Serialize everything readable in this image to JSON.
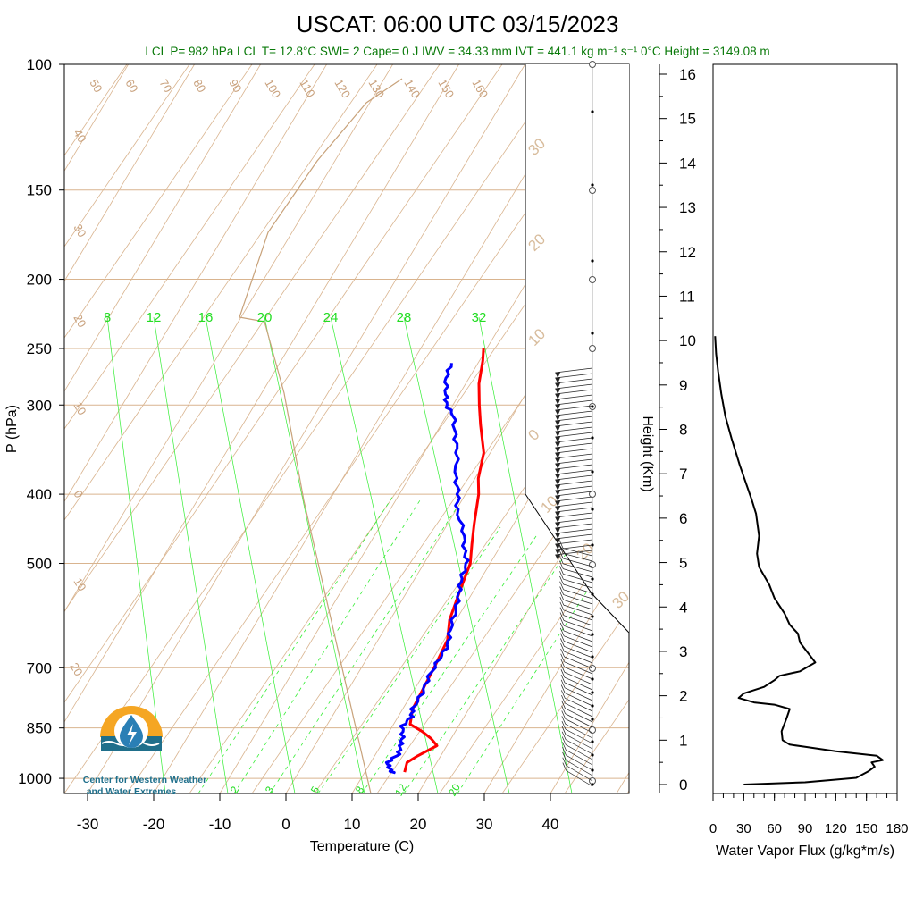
{
  "header": {
    "title": "USCAT: 06:00 UTC 03/15/2023",
    "stats": "LCL P= 982 hPa  LCL T= 12.8°C  SWI= 2  Cape= 0 J  IWV = 34.33 mm  IVT = 441.1 kg m⁻¹ s⁻¹  0°C Height = 3149.08 m"
  },
  "logo": {
    "line1": "Center for Western Weather",
    "line2": "and Water Extremes",
    "colors": {
      "sun": "#f5a623",
      "water": "#1f6f8b",
      "drop": "#2a7fb5"
    }
  },
  "colors": {
    "temperature": "#ff0000",
    "dewpoint": "#0000ff",
    "isotherm": "#d9b48f",
    "mixing_ratio": "#33ee33",
    "moist_adiabat": "#33ee33",
    "parcel": "#c8a27a",
    "flux": "#000000"
  },
  "chart_data": [
    {
      "type": "line",
      "subtype": "skew-t log-p",
      "xlabel": "Temperature (C)",
      "ylabel": "P (hPa)",
      "xlim": [
        -35,
        50
      ],
      "ylim": [
        1050,
        100
      ],
      "y_scale": "log",
      "x_ticks": [
        "-30",
        "-20",
        "-10",
        "0",
        "10",
        "20",
        "30",
        "40"
      ],
      "y_ticks": [
        "100",
        "150",
        "200",
        "250",
        "300",
        "400",
        "500",
        "700",
        "850",
        "1000"
      ],
      "isotherm_labels": [
        "50",
        "60",
        "70",
        "80",
        "90",
        "100",
        "110",
        "120",
        "130",
        "140",
        "150",
        "160",
        "40",
        "30",
        "20",
        "10",
        "0",
        "10",
        "20"
      ],
      "right_temp_labels": [
        "30",
        "20",
        "10",
        "0",
        "10",
        "20",
        "30"
      ],
      "mixing_ratio_labels_top": [
        "8",
        "12",
        "16",
        "20",
        "24",
        "28",
        "32"
      ],
      "mixing_ratio_labels_bottom": [
        "2",
        "3",
        "5",
        "8",
        "12",
        "20"
      ],
      "series": [
        {
          "name": "Temperature",
          "points": [
            [
              16,
              980
            ],
            [
              15.5,
              950
            ],
            [
              16.5,
              930
            ],
            [
              18.5,
              900
            ],
            [
              17,
              880
            ],
            [
              15,
              860
            ],
            [
              12.5,
              840
            ],
            [
              11.5,
              800
            ],
            [
              11,
              700
            ],
            [
              10.5,
              640
            ],
            [
              9,
              600
            ],
            [
              8,
              550
            ],
            [
              7,
              500
            ],
            [
              5.5,
              470
            ],
            [
              4,
              440
            ],
            [
              2,
              400
            ],
            [
              0.5,
              380
            ],
            [
              -1,
              350
            ],
            [
              -4,
              320
            ],
            [
              -6,
              300
            ],
            [
              -8,
              280
            ],
            [
              -9.5,
              260
            ],
            [
              -10.5,
              250
            ]
          ]
        },
        {
          "name": "Dewpoint",
          "points": [
            [
              14.5,
              985
            ],
            [
              13.5,
              970
            ],
            [
              12.5,
              950
            ],
            [
              13.5,
              925
            ],
            [
              13,
              900
            ],
            [
              12.5,
              875
            ],
            [
              11.5,
              845
            ],
            [
              12,
              820
            ],
            [
              11.5,
              800
            ],
            [
              11.5,
              760
            ],
            [
              11,
              720
            ],
            [
              11,
              680
            ],
            [
              11,
              650
            ],
            [
              10,
              620
            ],
            [
              9,
              580
            ],
            [
              8,
              550
            ],
            [
              7,
              525
            ],
            [
              6.5,
              500
            ],
            [
              5,
              480
            ],
            [
              3,
              450
            ],
            [
              0,
              420
            ],
            [
              -1,
              400
            ],
            [
              -3,
              380
            ],
            [
              -5,
              350
            ],
            [
              -7,
              330
            ],
            [
              -9,
              310
            ],
            [
              -11,
              300
            ],
            [
              -12,
              290
            ],
            [
              -13.5,
              275
            ],
            [
              -14,
              262
            ]
          ]
        }
      ],
      "wind_barbs_note": "wind barbs plotted along right edge"
    },
    {
      "type": "line",
      "xlabel": "Water Vapor Flux (g/kg*m/s)",
      "ylabel": "Height (Km)",
      "xlim": [
        0,
        180
      ],
      "ylim": [
        -0.2,
        16.4
      ],
      "x_ticks": [
        "0",
        "30",
        "60",
        "90",
        "120",
        "150",
        "180"
      ],
      "y_ticks": [
        "0",
        "1",
        "2",
        "3",
        "4",
        "5",
        "6",
        "7",
        "8",
        "9",
        "10",
        "11",
        "12",
        "13",
        "14",
        "15",
        "16"
      ],
      "series": [
        {
          "name": "Water Vapor Flux",
          "points": [
            [
              30,
              0.0
            ],
            [
              90,
              0.05
            ],
            [
              140,
              0.15
            ],
            [
              152,
              0.3
            ],
            [
              158,
              0.4
            ],
            [
              155,
              0.5
            ],
            [
              166,
              0.55
            ],
            [
              160,
              0.65
            ],
            [
              120,
              0.75
            ],
            [
              90,
              0.85
            ],
            [
              75,
              0.9
            ],
            [
              68,
              1.0
            ],
            [
              67,
              1.2
            ],
            [
              72,
              1.5
            ],
            [
              75,
              1.7
            ],
            [
              60,
              1.8
            ],
            [
              40,
              1.85
            ],
            [
              25,
              1.95
            ],
            [
              30,
              2.05
            ],
            [
              50,
              2.2
            ],
            [
              60,
              2.35
            ],
            [
              65,
              2.45
            ],
            [
              85,
              2.55
            ],
            [
              100,
              2.75
            ],
            [
              95,
              2.9
            ],
            [
              90,
              3.05
            ],
            [
              85,
              3.2
            ],
            [
              83,
              3.4
            ],
            [
              75,
              3.6
            ],
            [
              70,
              3.85
            ],
            [
              60,
              4.2
            ],
            [
              55,
              4.5
            ],
            [
              45,
              4.9
            ],
            [
              43,
              5.2
            ],
            [
              45,
              5.6
            ],
            [
              42,
              6.1
            ],
            [
              38,
              6.4
            ],
            [
              32,
              6.8
            ],
            [
              26,
              7.2
            ],
            [
              18,
              7.8
            ],
            [
              12,
              8.3
            ],
            [
              8,
              8.8
            ],
            [
              5,
              9.3
            ],
            [
              3,
              9.7
            ],
            [
              2,
              10.1
            ]
          ]
        }
      ]
    }
  ]
}
